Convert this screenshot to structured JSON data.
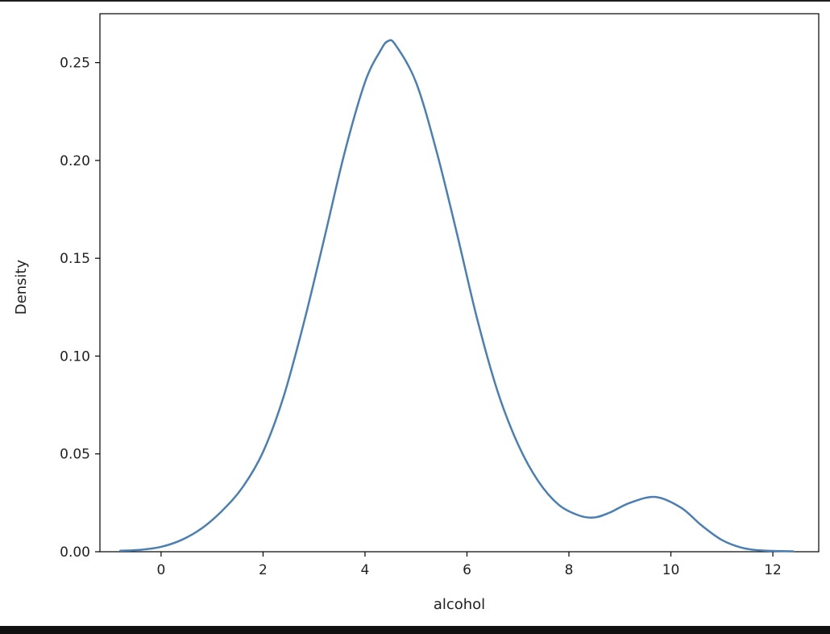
{
  "chart_data": {
    "type": "line",
    "title": "",
    "xlabel": "alcohol",
    "ylabel": "Density",
    "xlim": [
      -1.2,
      12.9
    ],
    "ylim": [
      0,
      0.275
    ],
    "xticks": [
      0,
      2,
      4,
      6,
      8,
      10,
      12
    ],
    "yticks": [
      0.0,
      0.05,
      0.1,
      0.15,
      0.2,
      0.25
    ],
    "xtick_labels": [
      "0",
      "2",
      "4",
      "6",
      "8",
      "10",
      "12"
    ],
    "ytick_labels": [
      "0.00",
      "0.05",
      "0.10",
      "0.15",
      "0.20",
      "0.25"
    ],
    "grid": false,
    "line_color": "#4a7fb5",
    "series": [
      {
        "x": [
          -0.8,
          -0.4,
          0.0,
          0.4,
          0.8,
          1.2,
          1.6,
          2.0,
          2.4,
          2.8,
          3.2,
          3.6,
          4.0,
          4.3,
          4.45,
          4.6,
          5.0,
          5.4,
          5.8,
          6.2,
          6.6,
          7.0,
          7.4,
          7.8,
          8.2,
          8.5,
          8.8,
          9.2,
          9.7,
          10.2,
          10.6,
          11.0,
          11.4,
          11.8,
          12.4
        ],
        "y": [
          0.0005,
          0.001,
          0.0025,
          0.006,
          0.012,
          0.021,
          0.033,
          0.051,
          0.079,
          0.117,
          0.16,
          0.204,
          0.24,
          0.256,
          0.261,
          0.259,
          0.24,
          0.205,
          0.163,
          0.119,
          0.082,
          0.055,
          0.036,
          0.024,
          0.0185,
          0.0175,
          0.02,
          0.025,
          0.028,
          0.0225,
          0.0135,
          0.006,
          0.002,
          0.0006,
          0.0002
        ]
      }
    ]
  }
}
